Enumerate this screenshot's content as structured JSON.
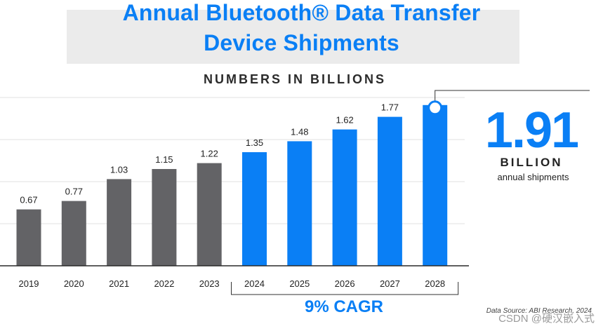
{
  "header": {
    "title_line1": "Annual Bluetooth® Data Transfer",
    "title_line2": "Device Shipments",
    "subtitle": "NUMBERS IN BILLIONS"
  },
  "callout": {
    "value": "1.91",
    "unit": "BILLION",
    "description": "annual shipments"
  },
  "cagr_label": "9% CAGR",
  "source_note": "Data Source: ABI Research, 2024",
  "watermark": "CSDN @硬汉嵌入式",
  "colors": {
    "title": "#0a7ff5",
    "historical_bar": "#636366",
    "forecast_bar": "#0a7ff5",
    "text": "#222222"
  },
  "chart_data": {
    "type": "bar",
    "title": "Annual Bluetooth® Data Transfer Device Shipments",
    "ylabel": "NUMBERS IN BILLIONS",
    "xlabel": "",
    "categories": [
      "2019",
      "2020",
      "2021",
      "2022",
      "2023",
      "2024",
      "2025",
      "2026",
      "2027",
      "2028"
    ],
    "values": [
      0.67,
      0.77,
      1.03,
      1.15,
      1.22,
      1.35,
      1.48,
      1.62,
      1.77,
      1.91
    ],
    "value_labels": [
      "0.67",
      "0.77",
      "1.03",
      "1.15",
      "1.22",
      "1.35",
      "1.48",
      "1.62",
      "1.77",
      ""
    ],
    "forecast_from_index": 5,
    "highlight_index": 9,
    "cagr_bracket": {
      "from": "2024",
      "to": "2028",
      "label": "9% CAGR"
    },
    "ylim": [
      0,
      2
    ],
    "grid": true
  }
}
